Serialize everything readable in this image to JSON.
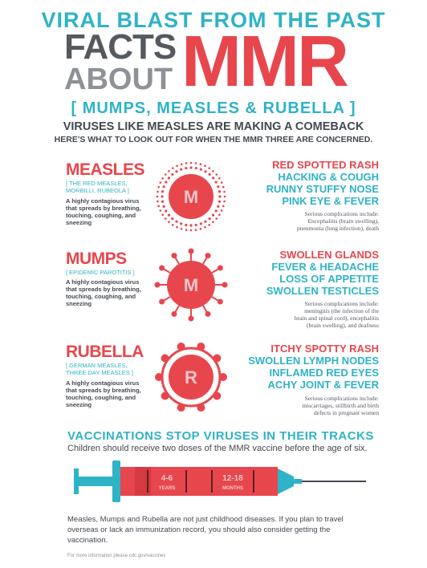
{
  "header": {
    "kicker": "VIRAL BLAST FROM THE PAST",
    "facts": "FACTS",
    "about": "ABOUT",
    "mmr": "MMR",
    "bracket": "[ MUMPS, MEASLES & RUBELLA ]",
    "intro_line1": "VIRUSES LIKE MEASLES ARE MAKING A COMEBACK",
    "intro_line2": "HERE'S WHAT TO LOOK OUT FOR WHEN THE MMR THREE ARE CONCERNED."
  },
  "viruses": [
    {
      "name": "MEASLES",
      "aka": [
        "[ THE RED MEASLES,",
        "MORBILLI, RUBEOLA ]"
      ],
      "desc": "A highly contagious virus that spreads by breathing, touching, coughing, and sneezing",
      "letter": "M",
      "symptoms": [
        "RED SPOTTED RASH",
        "HACKING & COUGH",
        "RUNNY STUFFY NOSE",
        "PINK EYE & FEVER"
      ],
      "complications": [
        "Serious complications include:",
        "Encephalitis (brain swelling),",
        "pneumonia (lung infection), death"
      ]
    },
    {
      "name": "MUMPS",
      "aka": [
        "[ EPIDEMIC PAROTITIS ]"
      ],
      "desc": "A highly contagious virus that spreads by breathing, touching, coughing, and sneezing",
      "letter": "M",
      "symptoms": [
        "SWOLLEN GLANDS",
        "FEVER & HEADACHE",
        "LOSS OF APPETITE",
        "SWOLLEN TESTICLES"
      ],
      "complications": [
        "Serious complications include:",
        "meningitis (the infection of the",
        "brain and spinal cord), encephalitis",
        "(brain swelling), and deafness"
      ]
    },
    {
      "name": "RUBELLA",
      "aka": [
        "[ GERMAN MEASLES,",
        "THREE DAY MEASLES ]"
      ],
      "desc": "A highly contagious virus that spreads by breathing, touching, coughing, and sneezing",
      "letter": "R",
      "symptoms": [
        "ITCHY SPOTTY RASH",
        "SWOLLEN LYMPH NODES",
        "INFLAMED RED EYES",
        "ACHY JOINT & FEVER"
      ],
      "complications": [
        "Serious complications include:",
        "miscarriages, stillbirth and birth",
        "defects in pregnant women"
      ]
    }
  ],
  "vaccination": {
    "title": "VACCINATIONS STOP VIRUSES IN THEIR TRACKS",
    "subtitle": "Children should receive two doses of the MMR vaccine before the age of six.",
    "dose1_value": "4-6",
    "dose1_unit": "YEARS",
    "dose2_value": "12-18",
    "dose2_unit": "MONTHS"
  },
  "footer": {
    "note": "Measles, Mumps and Rubella are not just childhood diseases. If you plan to travel overseas or lack an immunization record, you should also consider getting the vaccination.",
    "source": "For more information please cdc.gov/vaccines"
  },
  "colors": {
    "red": "#e8464d",
    "teal": "#2fb3c6",
    "dark": "#444850"
  },
  "icons": [
    "measles-virus-icon",
    "mumps-virus-icon",
    "rubella-virus-icon",
    "syringe-icon"
  ]
}
